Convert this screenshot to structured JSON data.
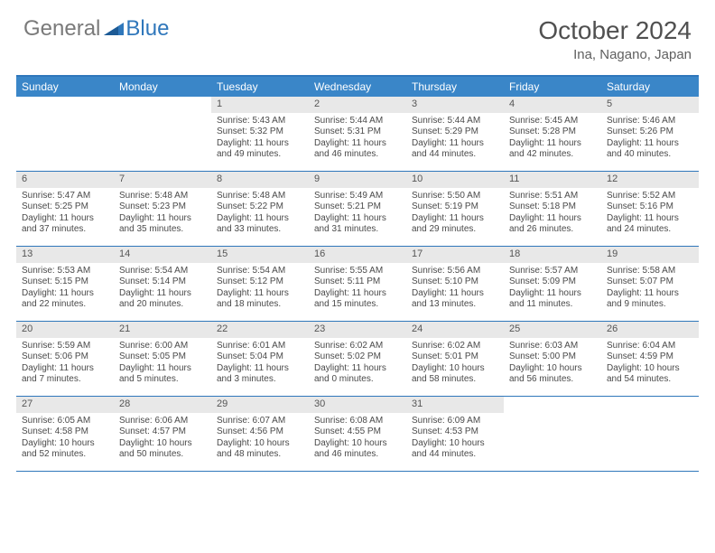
{
  "brand": {
    "part1": "General",
    "part2": "Blue"
  },
  "title": "October 2024",
  "location": "Ina, Nagano, Japan",
  "colors": {
    "accent": "#2f77bb",
    "header_bg": "#3a86c8",
    "daynum_bg": "#e8e8e8",
    "text": "#4a4a4a",
    "title_text": "#505050"
  },
  "days_of_week": [
    "Sunday",
    "Monday",
    "Tuesday",
    "Wednesday",
    "Thursday",
    "Friday",
    "Saturday"
  ],
  "weeks": [
    [
      {
        "n": "",
        "sr": "",
        "ss": "",
        "dl": ""
      },
      {
        "n": "",
        "sr": "",
        "ss": "",
        "dl": ""
      },
      {
        "n": "1",
        "sr": "Sunrise: 5:43 AM",
        "ss": "Sunset: 5:32 PM",
        "dl": "Daylight: 11 hours and 49 minutes."
      },
      {
        "n": "2",
        "sr": "Sunrise: 5:44 AM",
        "ss": "Sunset: 5:31 PM",
        "dl": "Daylight: 11 hours and 46 minutes."
      },
      {
        "n": "3",
        "sr": "Sunrise: 5:44 AM",
        "ss": "Sunset: 5:29 PM",
        "dl": "Daylight: 11 hours and 44 minutes."
      },
      {
        "n": "4",
        "sr": "Sunrise: 5:45 AM",
        "ss": "Sunset: 5:28 PM",
        "dl": "Daylight: 11 hours and 42 minutes."
      },
      {
        "n": "5",
        "sr": "Sunrise: 5:46 AM",
        "ss": "Sunset: 5:26 PM",
        "dl": "Daylight: 11 hours and 40 minutes."
      }
    ],
    [
      {
        "n": "6",
        "sr": "Sunrise: 5:47 AM",
        "ss": "Sunset: 5:25 PM",
        "dl": "Daylight: 11 hours and 37 minutes."
      },
      {
        "n": "7",
        "sr": "Sunrise: 5:48 AM",
        "ss": "Sunset: 5:23 PM",
        "dl": "Daylight: 11 hours and 35 minutes."
      },
      {
        "n": "8",
        "sr": "Sunrise: 5:48 AM",
        "ss": "Sunset: 5:22 PM",
        "dl": "Daylight: 11 hours and 33 minutes."
      },
      {
        "n": "9",
        "sr": "Sunrise: 5:49 AM",
        "ss": "Sunset: 5:21 PM",
        "dl": "Daylight: 11 hours and 31 minutes."
      },
      {
        "n": "10",
        "sr": "Sunrise: 5:50 AM",
        "ss": "Sunset: 5:19 PM",
        "dl": "Daylight: 11 hours and 29 minutes."
      },
      {
        "n": "11",
        "sr": "Sunrise: 5:51 AM",
        "ss": "Sunset: 5:18 PM",
        "dl": "Daylight: 11 hours and 26 minutes."
      },
      {
        "n": "12",
        "sr": "Sunrise: 5:52 AM",
        "ss": "Sunset: 5:16 PM",
        "dl": "Daylight: 11 hours and 24 minutes."
      }
    ],
    [
      {
        "n": "13",
        "sr": "Sunrise: 5:53 AM",
        "ss": "Sunset: 5:15 PM",
        "dl": "Daylight: 11 hours and 22 minutes."
      },
      {
        "n": "14",
        "sr": "Sunrise: 5:54 AM",
        "ss": "Sunset: 5:14 PM",
        "dl": "Daylight: 11 hours and 20 minutes."
      },
      {
        "n": "15",
        "sr": "Sunrise: 5:54 AM",
        "ss": "Sunset: 5:12 PM",
        "dl": "Daylight: 11 hours and 18 minutes."
      },
      {
        "n": "16",
        "sr": "Sunrise: 5:55 AM",
        "ss": "Sunset: 5:11 PM",
        "dl": "Daylight: 11 hours and 15 minutes."
      },
      {
        "n": "17",
        "sr": "Sunrise: 5:56 AM",
        "ss": "Sunset: 5:10 PM",
        "dl": "Daylight: 11 hours and 13 minutes."
      },
      {
        "n": "18",
        "sr": "Sunrise: 5:57 AM",
        "ss": "Sunset: 5:09 PM",
        "dl": "Daylight: 11 hours and 11 minutes."
      },
      {
        "n": "19",
        "sr": "Sunrise: 5:58 AM",
        "ss": "Sunset: 5:07 PM",
        "dl": "Daylight: 11 hours and 9 minutes."
      }
    ],
    [
      {
        "n": "20",
        "sr": "Sunrise: 5:59 AM",
        "ss": "Sunset: 5:06 PM",
        "dl": "Daylight: 11 hours and 7 minutes."
      },
      {
        "n": "21",
        "sr": "Sunrise: 6:00 AM",
        "ss": "Sunset: 5:05 PM",
        "dl": "Daylight: 11 hours and 5 minutes."
      },
      {
        "n": "22",
        "sr": "Sunrise: 6:01 AM",
        "ss": "Sunset: 5:04 PM",
        "dl": "Daylight: 11 hours and 3 minutes."
      },
      {
        "n": "23",
        "sr": "Sunrise: 6:02 AM",
        "ss": "Sunset: 5:02 PM",
        "dl": "Daylight: 11 hours and 0 minutes."
      },
      {
        "n": "24",
        "sr": "Sunrise: 6:02 AM",
        "ss": "Sunset: 5:01 PM",
        "dl": "Daylight: 10 hours and 58 minutes."
      },
      {
        "n": "25",
        "sr": "Sunrise: 6:03 AM",
        "ss": "Sunset: 5:00 PM",
        "dl": "Daylight: 10 hours and 56 minutes."
      },
      {
        "n": "26",
        "sr": "Sunrise: 6:04 AM",
        "ss": "Sunset: 4:59 PM",
        "dl": "Daylight: 10 hours and 54 minutes."
      }
    ],
    [
      {
        "n": "27",
        "sr": "Sunrise: 6:05 AM",
        "ss": "Sunset: 4:58 PM",
        "dl": "Daylight: 10 hours and 52 minutes."
      },
      {
        "n": "28",
        "sr": "Sunrise: 6:06 AM",
        "ss": "Sunset: 4:57 PM",
        "dl": "Daylight: 10 hours and 50 minutes."
      },
      {
        "n": "29",
        "sr": "Sunrise: 6:07 AM",
        "ss": "Sunset: 4:56 PM",
        "dl": "Daylight: 10 hours and 48 minutes."
      },
      {
        "n": "30",
        "sr": "Sunrise: 6:08 AM",
        "ss": "Sunset: 4:55 PM",
        "dl": "Daylight: 10 hours and 46 minutes."
      },
      {
        "n": "31",
        "sr": "Sunrise: 6:09 AM",
        "ss": "Sunset: 4:53 PM",
        "dl": "Daylight: 10 hours and 44 minutes."
      },
      {
        "n": "",
        "sr": "",
        "ss": "",
        "dl": ""
      },
      {
        "n": "",
        "sr": "",
        "ss": "",
        "dl": ""
      }
    ]
  ]
}
